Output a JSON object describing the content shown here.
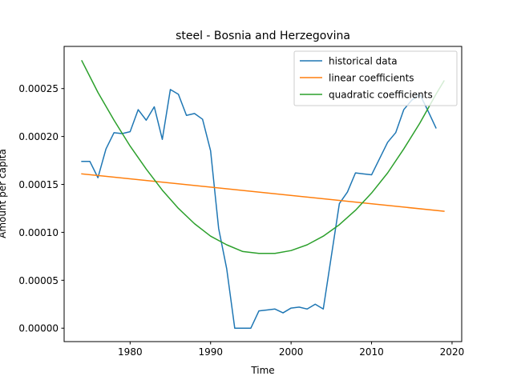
{
  "chart_data": {
    "type": "line",
    "title": "steel - Bosnia and Herzegovina",
    "xlabel": "Time",
    "ylabel": "Amount per capita",
    "xlim": [
      1971.8,
      2021.2
    ],
    "ylim": [
      -1.4e-05,
      0.000294
    ],
    "xticks": [
      1980,
      1990,
      2000,
      2010,
      2020
    ],
    "xtick_labels": [
      "1980",
      "1990",
      "2000",
      "2010",
      "2020"
    ],
    "yticks": [
      0,
      5e-05,
      0.0001,
      0.00015,
      0.0002,
      0.00025
    ],
    "ytick_labels": [
      "0.00000",
      "0.00005",
      "0.00010",
      "0.00015",
      "0.00020",
      "0.00025"
    ],
    "grid": false,
    "legend_position": "top-right",
    "series": [
      {
        "name": "historical data",
        "color": "#1f77b4",
        "x": [
          1974,
          1975,
          1976,
          1977,
          1978,
          1979,
          1980,
          1981,
          1982,
          1983,
          1984,
          1985,
          1986,
          1987,
          1988,
          1989,
          1990,
          1991,
          1992,
          1993,
          1994,
          1995,
          1996,
          1997,
          1998,
          1999,
          2000,
          2001,
          2002,
          2003,
          2004,
          2005,
          2006,
          2007,
          2008,
          2009,
          2010,
          2011,
          2012,
          2013,
          2014,
          2015,
          2016,
          2017,
          2018
        ],
        "values": [
          0.000174,
          0.000174,
          0.000157,
          0.000187,
          0.000204,
          0.000203,
          0.000205,
          0.000228,
          0.000217,
          0.000231,
          0.000197,
          0.000249,
          0.000244,
          0.000222,
          0.000224,
          0.000218,
          0.000185,
          0.000104,
          6.2e-05,
          0.0,
          0.0,
          0.0,
          1.8e-05,
          1.9e-05,
          2e-05,
          1.6e-05,
          2.1e-05,
          2.2e-05,
          2e-05,
          2.5e-05,
          2e-05,
          7.5e-05,
          0.00013,
          0.000142,
          0.000162,
          0.000161,
          0.00016,
          0.000177,
          0.000194,
          0.000204,
          0.000228,
          0.000238,
          0.000244,
          0.000227,
          0.000209
        ]
      },
      {
        "name": "linear coefficients",
        "color": "#ff7f0e",
        "x": [
          1974,
          2019
        ],
        "values": [
          0.000161,
          0.000122
        ]
      },
      {
        "name": "quadratic coefficients",
        "color": "#2ca02c",
        "x": [
          1974,
          1976,
          1978,
          1980,
          1982,
          1984,
          1986,
          1988,
          1990,
          1992,
          1994,
          1996,
          1997,
          1998,
          2000,
          2002,
          2004,
          2006,
          2008,
          2010,
          2012,
          2014,
          2016,
          2018,
          2019
        ],
        "values": [
          0.000279,
          0.000246,
          0.000217,
          0.00019,
          0.000166,
          0.000144,
          0.000125,
          0.000109,
          9.6e-05,
          8.7e-05,
          8e-05,
          7.8e-05,
          7.8e-05,
          7.8e-05,
          8.1e-05,
          8.7e-05,
          9.6e-05,
          0.000108,
          0.000123,
          0.000141,
          0.000162,
          0.000187,
          0.000214,
          0.000244,
          0.000258
        ]
      }
    ]
  }
}
